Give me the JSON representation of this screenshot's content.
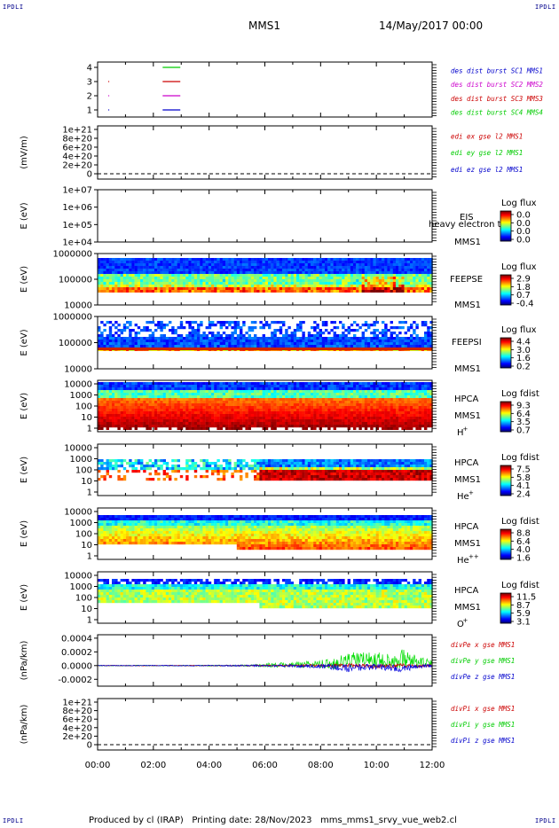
{
  "corner_label": "IPDLI",
  "header": {
    "spacecraft": "MMS1",
    "date": "14/May/2017 00:00"
  },
  "footer": {
    "produced_by": "Produced by cl (IRAP)",
    "printing_date": "Printing date: 28/Nov/2023",
    "filename": "mms_mms1_srvy_vue_web2.cl"
  },
  "x_axis": {
    "ticks": [
      "00:00",
      "02:00",
      "04:00",
      "06:00",
      "08:00",
      "10:00",
      "12:00"
    ]
  },
  "chart_data": [
    {
      "type": "line",
      "panel": "burst-availability",
      "yticks": [
        "1",
        "2",
        "3",
        "4"
      ],
      "legend": [
        {
          "label": "des dist burst SC1 MMS1",
          "color": "#0000cc"
        },
        {
          "label": "des dist burst SC2 MMS2",
          "color": "#cc00cc"
        },
        {
          "label": "des dist burst SC3 MMS3",
          "color": "#cc0000"
        },
        {
          "label": "des dist burst SC4 MMS4",
          "color": "#00cc00"
        }
      ],
      "series": [
        {
          "name": "des dist burst SC1 MMS1",
          "level": 1,
          "segments": [
            [
              "00:23",
              "00:25"
            ],
            [
              "02:20",
              "02:58"
            ]
          ],
          "color": "#0000cc"
        },
        {
          "name": "des dist burst SC2 MMS2",
          "level": 2,
          "segments": [
            [
              "00:23",
              "00:25"
            ],
            [
              "02:20",
              "02:58"
            ]
          ],
          "color": "#cc00cc"
        },
        {
          "name": "des dist burst SC3 MMS3",
          "level": 3,
          "segments": [
            [
              "00:23",
              "00:25"
            ],
            [
              "02:20",
              "02:58"
            ]
          ],
          "color": "#cc0000"
        },
        {
          "name": "des dist burst SC4 MMS4",
          "level": 4,
          "segments": [
            [
              "02:20",
              "02:58"
            ]
          ],
          "color": "#00cc00"
        }
      ]
    },
    {
      "type": "line",
      "panel": "edi-e",
      "ylabel": "(mV/m)",
      "yticks": [
        "0",
        "2e+20",
        "4e+20",
        "6e+20",
        "8e+20",
        "1e+21"
      ],
      "legend": [
        {
          "label": "edi ex gse l2 MMS1",
          "color": "#cc0000"
        },
        {
          "label": "edi ey gse l2 MMS1",
          "color": "#00cc00"
        },
        {
          "label": "edi ez gse l2 MMS1",
          "color": "#0000cc"
        }
      ],
      "zero_line": true
    },
    {
      "type": "heatmap",
      "panel": "eis",
      "ylabel": "E (eV)",
      "yticks": [
        "1e+04",
        "1e+05",
        "1e+06",
        "1e+07"
      ],
      "instrument": "EIS",
      "instrument_sub": "heavy electron to",
      "spacecraft": "MMS1",
      "colorbar": {
        "title": "Log flux",
        "ticks": [
          "0.0",
          "0.0",
          "0.0",
          "0.0"
        ]
      }
    },
    {
      "type": "heatmap",
      "panel": "feeps-e",
      "ylabel": "E (eV)",
      "yticks": [
        "10000",
        "100000",
        "1000000"
      ],
      "instrument": "FEEPSE",
      "spacecraft": "MMS1",
      "colorbar": {
        "title": "Log flux",
        "ticks": [
          "2.9",
          "1.8",
          "0.7",
          "-0.4"
        ]
      }
    },
    {
      "type": "heatmap",
      "panel": "feeps-i",
      "ylabel": "E (eV)",
      "yticks": [
        "10000",
        "100000",
        "1000000"
      ],
      "instrument": "FEEPSI",
      "spacecraft": "MMS1",
      "colorbar": {
        "title": "Log flux",
        "ticks": [
          "4.4",
          "3.0",
          "1.6",
          "0.2"
        ]
      }
    },
    {
      "type": "heatmap",
      "panel": "hpca-h",
      "ylabel": "E (eV)",
      "yticks": [
        "1",
        "10",
        "100",
        "1000",
        "10000"
      ],
      "instrument": "HPCA",
      "spacecraft": "MMS1",
      "species": "H",
      "species_sup": "+",
      "colorbar": {
        "title": "Log fdist",
        "ticks": [
          "9.3",
          "6.4",
          "3.5",
          "0.7"
        ]
      }
    },
    {
      "type": "heatmap",
      "panel": "hpca-he1",
      "ylabel": "E (eV)",
      "yticks": [
        "1",
        "10",
        "100",
        "1000",
        "10000"
      ],
      "instrument": "HPCA",
      "spacecraft": "MMS1",
      "species": "He",
      "species_sup": "+",
      "colorbar": {
        "title": "Log fdist",
        "ticks": [
          "7.5",
          "5.8",
          "4.1",
          "2.4"
        ]
      }
    },
    {
      "type": "heatmap",
      "panel": "hpca-he2",
      "ylabel": "E (eV)",
      "yticks": [
        "1",
        "10",
        "100",
        "1000",
        "10000"
      ],
      "instrument": "HPCA",
      "spacecraft": "MMS1",
      "species": "He",
      "species_sup": "++",
      "colorbar": {
        "title": "Log fdist",
        "ticks": [
          "8.8",
          "6.4",
          "4.0",
          "1.6"
        ]
      }
    },
    {
      "type": "heatmap",
      "panel": "hpca-o",
      "ylabel": "E (eV)",
      "yticks": [
        "1",
        "10",
        "100",
        "1000",
        "10000"
      ],
      "instrument": "HPCA",
      "spacecraft": "MMS1",
      "species": "O",
      "species_sup": "+",
      "colorbar": {
        "title": "Log fdist",
        "ticks": [
          "11.5",
          "8.7",
          "5.9",
          "3.1"
        ]
      }
    },
    {
      "type": "line",
      "panel": "divpe",
      "ylabel": "(nPa/km)",
      "yticks": [
        "-0.0002",
        "0.0000",
        "0.0002",
        "0.0004"
      ],
      "ylim": [
        -0.0003,
        0.00045
      ],
      "legend": [
        {
          "label": "divPe x gse MMS1",
          "color": "#cc0000"
        },
        {
          "label": "divPe y gse MMS1",
          "color": "#00cc00"
        },
        {
          "label": "divPe z gse MMS1",
          "color": "#0000cc"
        }
      ],
      "series": [
        {
          "name": "divPe y gse MMS1",
          "color": "#00dd00",
          "x": [
            0,
            1,
            2,
            3,
            4,
            5,
            5.5,
            6,
            6.5,
            7,
            7.5,
            8,
            8.5,
            9,
            9.5,
            10,
            10.5,
            11,
            11.5,
            12
          ],
          "amplitude": [
            5e-06,
            6e-06,
            6e-06,
            7e-06,
            8e-06,
            1e-05,
            1.5e-05,
            3e-05,
            3.5e-05,
            4e-05,
            5e-05,
            6e-05,
            8e-05,
            0.00012,
            0.00011,
            0.00011,
            0.00012,
            0.00014,
            8e-05,
            5e-05
          ],
          "offset": [
            0,
            0,
            0,
            0,
            0,
            0,
            0,
            5e-06,
            1e-05,
            1e-05,
            2e-05,
            2e-05,
            3e-05,
            8e-05,
            9e-05,
            8e-05,
            8e-05,
            0.0001,
            5e-05,
            3e-05
          ]
        },
        {
          "name": "divPe x gse MMS1",
          "color": "#cc0000",
          "x": [
            0,
            2,
            4,
            6,
            8,
            9,
            10,
            11,
            12
          ],
          "amplitude": [
            4e-06,
            4e-06,
            5e-06,
            1e-05,
            2e-05,
            3e-05,
            3e-05,
            3e-05,
            2e-05
          ],
          "offset": [
            0,
            0,
            0,
            0,
            0,
            0,
            -1e-05,
            0,
            0
          ]
        },
        {
          "name": "divPe z gse MMS1",
          "color": "#0000dd",
          "x": [
            0,
            2,
            4,
            5,
            6,
            7,
            8,
            8.5,
            9,
            9.5,
            10,
            10.5,
            11,
            11.5,
            12
          ],
          "amplitude": [
            5e-06,
            6e-06,
            8e-06,
            1e-05,
            1.5e-05,
            2e-05,
            3e-05,
            4e-05,
            6e-05,
            5e-05,
            4e-05,
            5e-05,
            6e-05,
            3e-05,
            2e-05
          ],
          "offset": [
            0,
            0,
            0,
            0,
            0,
            -5e-06,
            -1e-05,
            -2e-05,
            -4e-05,
            -3e-05,
            -2e-05,
            -3e-05,
            -4e-05,
            -1e-05,
            0
          ]
        }
      ]
    },
    {
      "type": "line",
      "panel": "divpi",
      "ylabel": "(nPa/km)",
      "yticks": [
        "0",
        "2e+20",
        "4e+20",
        "6e+20",
        "8e+20",
        "1e+21"
      ],
      "legend": [
        {
          "label": "divPi x gse MMS1",
          "color": "#cc0000"
        },
        {
          "label": "divPi y gse MMS1",
          "color": "#00cc00"
        },
        {
          "label": "divPi z gse MMS1",
          "color": "#0000cc"
        }
      ],
      "zero_line": true
    }
  ]
}
